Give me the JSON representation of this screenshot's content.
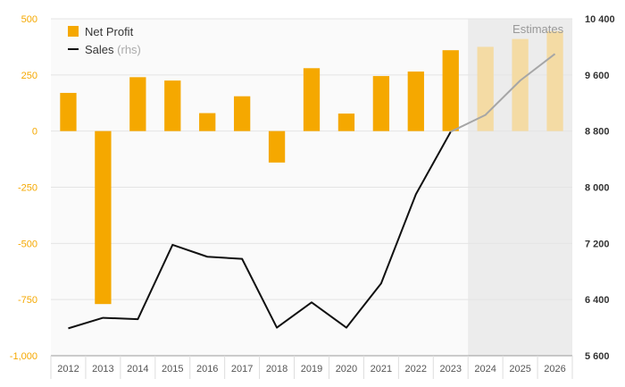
{
  "chart_data": {
    "type": "bar",
    "categories": [
      "2012",
      "2013",
      "2014",
      "2015",
      "2016",
      "2017",
      "2018",
      "2019",
      "2020",
      "2021",
      "2022",
      "2023",
      "2024",
      "2025",
      "2026"
    ],
    "series": [
      {
        "name": "Net Profit",
        "type": "bar",
        "axis": "left",
        "values": [
          170,
          -770,
          240,
          225,
          80,
          155,
          -140,
          280,
          78,
          245,
          265,
          360,
          375,
          410,
          445
        ]
      },
      {
        "name": "Sales",
        "name_suffix": "(rhs)",
        "type": "line",
        "axis": "right",
        "values": [
          5990,
          6140,
          6120,
          7180,
          7010,
          6980,
          6000,
          6360,
          6000,
          6630,
          7900,
          8790,
          9030,
          9520,
          9900
        ]
      }
    ],
    "estimate_start_index": 12,
    "estimate_label": "Estimates",
    "ylim_left": [
      -1000,
      500
    ],
    "yticks_left": [
      {
        "value": 500,
        "label": "500"
      },
      {
        "value": 250,
        "label": "250"
      },
      {
        "value": 0,
        "label": "0"
      },
      {
        "value": -250,
        "label": "-250"
      },
      {
        "value": -500,
        "label": "-500"
      },
      {
        "value": -750,
        "label": "-750"
      },
      {
        "value": -1000,
        "label": "-1,000"
      }
    ],
    "ylim_right": [
      5600,
      10400
    ],
    "yticks_right": [
      {
        "value": 10400,
        "label": "10 400"
      },
      {
        "value": 9600,
        "label": "9 600"
      },
      {
        "value": 8800,
        "label": "8 800"
      },
      {
        "value": 8000,
        "label": "8 000"
      },
      {
        "value": 7200,
        "label": "7 200"
      },
      {
        "value": 6400,
        "label": "6 400"
      },
      {
        "value": 5600,
        "label": "5 600"
      }
    ],
    "grid": true,
    "legend_position": "top-left",
    "colors": {
      "bar": "#f5a800",
      "bar_estimate": "#f4dba4",
      "line": "#111111",
      "line_estimate": "#a6a6a6",
      "estimate_band": "#ececec",
      "plot_background": "#fafafa",
      "grid": "#e4e4e4",
      "left_tick": "#f5a800"
    }
  }
}
